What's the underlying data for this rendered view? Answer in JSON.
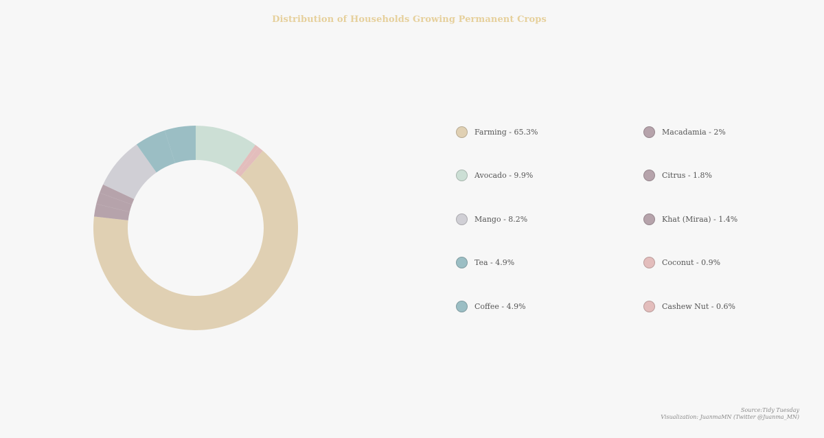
{
  "chart_data": {
    "type": "pie",
    "title": "Distribution of Households Growing Permanent Crops",
    "donut": true,
    "legend_position": "right",
    "slices": [
      {
        "label": "Farming",
        "value": 65.3,
        "legend": "Farming - 65.3%",
        "color": "#e0d0b3"
      },
      {
        "label": "Avocado",
        "value": 9.9,
        "legend": "Avocado - 9.9%",
        "color": "#ccdfd5"
      },
      {
        "label": "Mango",
        "value": 8.2,
        "legend": "Mango - 8.2%",
        "color": "#d0cfd5"
      },
      {
        "label": "Tea",
        "value": 4.9,
        "legend": "Tea - 4.9%",
        "color": "#9bbec4"
      },
      {
        "label": "Coffee",
        "value": 4.9,
        "legend": "Coffee - 4.9%",
        "color": "#9bbec4"
      },
      {
        "label": "Macadamia",
        "value": 2,
        "legend": "Macadamia - 2%",
        "color": "#b6a3ab"
      },
      {
        "label": "Citrus",
        "value": 1.8,
        "legend": "Citrus - 1.8%",
        "color": "#b6a3ab"
      },
      {
        "label": "Khat (Miraa)",
        "value": 1.4,
        "legend": "Khat (Miraa) - 1.4%",
        "color": "#b6a3ab"
      },
      {
        "label": "Coconut",
        "value": 0.9,
        "legend": "Coconut - 0.9%",
        "color": "#e3bdbc"
      },
      {
        "label": "Cashew Nut",
        "value": 0.6,
        "legend": "Cashew Nut - 0.6%",
        "color": "#e3bdbc"
      }
    ]
  },
  "caption": {
    "source": "Source:Tidy Tuesday",
    "credit": "Visualization: JuanmaMN (Twitter @Juanma_MN)"
  }
}
